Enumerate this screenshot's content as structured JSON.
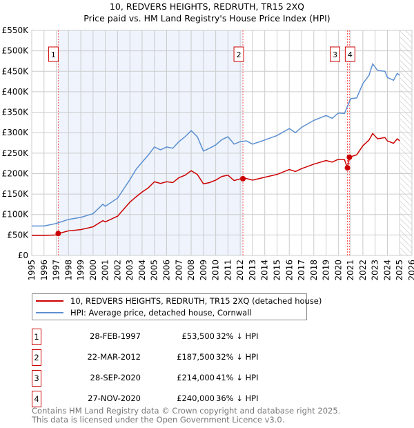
{
  "chart_data": {
    "type": "line",
    "title": "10, REDVERS HEIGHTS, REDRUTH, TR15 2XQ",
    "subtitle": "Price paid vs. HM Land Registry's House Price Index (HPI)",
    "xlim": [
      1995,
      2026
    ],
    "ylim": [
      0,
      550000
    ],
    "y_ticks": [
      {
        "v": 0,
        "label": "£0"
      },
      {
        "v": 50000,
        "label": "£50K"
      },
      {
        "v": 100000,
        "label": "£100K"
      },
      {
        "v": 150000,
        "label": "£150K"
      },
      {
        "v": 200000,
        "label": "£200K"
      },
      {
        "v": 250000,
        "label": "£250K"
      },
      {
        "v": 300000,
        "label": "£300K"
      },
      {
        "v": 350000,
        "label": "£350K"
      },
      {
        "v": 400000,
        "label": "£400K"
      },
      {
        "v": 450000,
        "label": "£450K"
      },
      {
        "v": 500000,
        "label": "£500K"
      },
      {
        "v": 550000,
        "label": "£550K"
      }
    ],
    "x_ticks": [
      "1995",
      "1996",
      "1997",
      "1998",
      "1999",
      "2000",
      "2001",
      "2002",
      "2003",
      "2004",
      "2005",
      "2006",
      "2007",
      "2008",
      "2009",
      "2010",
      "2011",
      "2012",
      "2013",
      "2014",
      "2015",
      "2016",
      "2017",
      "2018",
      "2019",
      "2020",
      "2021",
      "2022",
      "2023",
      "2024",
      "2025",
      "2026"
    ],
    "grid": true,
    "shaded_ranges": [
      [
        1997.16,
        2012.22
      ]
    ],
    "forecast_hatch_from": 2025.05,
    "series": [
      {
        "name": "10, REDVERS HEIGHTS, REDRUTH, TR15 2XQ (detached house)",
        "color": "#cc0000",
        "x": [
          1995,
          1996,
          1997,
          1997.16,
          1998,
          1999,
          2000,
          2000.8,
          2001,
          2002,
          2003,
          2003.5,
          2004,
          2004.5,
          2005,
          2005.5,
          2006,
          2006.5,
          2007,
          2007.5,
          2008,
          2008.5,
          2009,
          2009.5,
          2010,
          2010.5,
          2011,
          2011.5,
          2012,
          2012.22,
          2012.5,
          2013,
          2014,
          2015,
          2016,
          2016.5,
          2017,
          2018,
          2019,
          2019.5,
          2020,
          2020.5,
          2020.74,
          2020.9,
          2021.5,
          2022,
          2022.5,
          2022.8,
          2023.2,
          2023.8,
          2024,
          2024.5,
          2024.8,
          2025
        ],
        "y": [
          49000,
          49000,
          50000,
          53500,
          60000,
          63000,
          70000,
          85000,
          82000,
          96000,
          130000,
          143000,
          155000,
          165000,
          180000,
          176000,
          180000,
          178000,
          190000,
          196000,
          207000,
          198000,
          175000,
          178000,
          184000,
          193000,
          196000,
          183000,
          187000,
          187500,
          188000,
          184000,
          191000,
          198000,
          210000,
          205000,
          212000,
          223000,
          232000,
          228000,
          235000,
          234000,
          214000,
          240000,
          246000,
          268000,
          282000,
          298000,
          285000,
          288000,
          280000,
          274000,
          285000,
          280000
        ]
      },
      {
        "name": "HPI: Average price, detached house, Cornwall",
        "color": "#5b8fd0",
        "x": [
          1995,
          1996,
          1997,
          1998,
          1999,
          2000,
          2000.8,
          2001,
          2002,
          2003,
          2003.5,
          2004,
          2004.5,
          2005,
          2005.5,
          2006,
          2006.5,
          2007,
          2007.5,
          2008,
          2008.5,
          2009,
          2009.5,
          2010,
          2010.5,
          2011,
          2011.5,
          2012,
          2012.5,
          2013,
          2014,
          2015,
          2016,
          2016.5,
          2017,
          2018,
          2019,
          2019.5,
          2020,
          2020.5,
          2021,
          2021.5,
          2022,
          2022.5,
          2022.8,
          2023.2,
          2023.8,
          2024,
          2024.5,
          2024.8,
          2025
        ],
        "y": [
          72000,
          72000,
          78000,
          88000,
          93000,
          102000,
          125000,
          120000,
          140000,
          185000,
          210000,
          228000,
          245000,
          265000,
          258000,
          265000,
          262000,
          278000,
          290000,
          305000,
          290000,
          255000,
          262000,
          270000,
          283000,
          290000,
          272000,
          278000,
          280000,
          272000,
          282000,
          293000,
          310000,
          300000,
          313000,
          330000,
          342000,
          335000,
          348000,
          347000,
          383000,
          385000,
          420000,
          440000,
          468000,
          452000,
          450000,
          435000,
          428000,
          445000,
          440000
        ]
      }
    ],
    "sales": [
      {
        "n": "1",
        "x": 1997.16,
        "y": 53500,
        "date": "28-FEB-1997",
        "price": "£53,500",
        "hpi": "32% ↓ HPI",
        "show_label": true
      },
      {
        "n": "2",
        "x": 2012.22,
        "y": 187500,
        "date": "22-MAR-2012",
        "price": "£187,500",
        "hpi": "32% ↓ HPI",
        "show_label": true
      },
      {
        "n": "3",
        "x": 2020.74,
        "y": 214000,
        "date": "28-SEP-2020",
        "price": "£214,000",
        "hpi": "41% ↓ HPI",
        "show_label": true
      },
      {
        "n": "4",
        "x": 2020.9,
        "y": 240000,
        "date": "27-NOV-2020",
        "price": "£240,000",
        "hpi": "36% ↓ HPI",
        "show_label": true
      }
    ]
  },
  "legend": {
    "red": "10, REDVERS HEIGHTS, REDRUTH, TR15 2XQ (detached house)",
    "blue": "HPI: Average price, detached house, Cornwall"
  },
  "footer": {
    "line1": "Contains HM Land Registry data © Crown copyright and database right 2025.",
    "line2": "This data is licensed under the Open Government Licence v3.0."
  }
}
